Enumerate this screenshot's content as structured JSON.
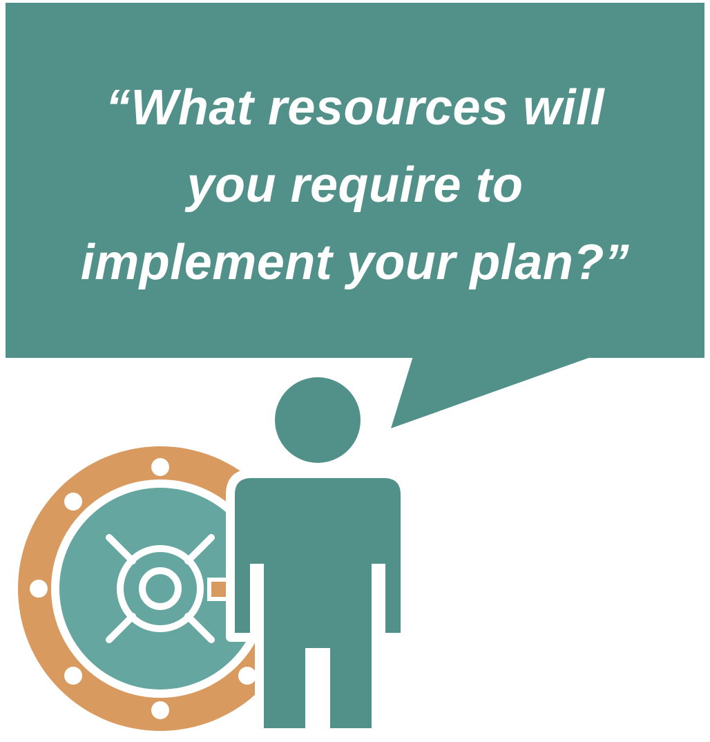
{
  "speech_bubble": {
    "lines": [
      "“What resources will",
      "you require to",
      "implement your plan?”"
    ]
  },
  "colors": {
    "teal": "#52918a",
    "teal_light": "#66a6a0",
    "orange": "#d99a5f",
    "white": "#ffffff"
  },
  "icons": {
    "person": "person-icon",
    "vault": "vault-door-icon"
  }
}
